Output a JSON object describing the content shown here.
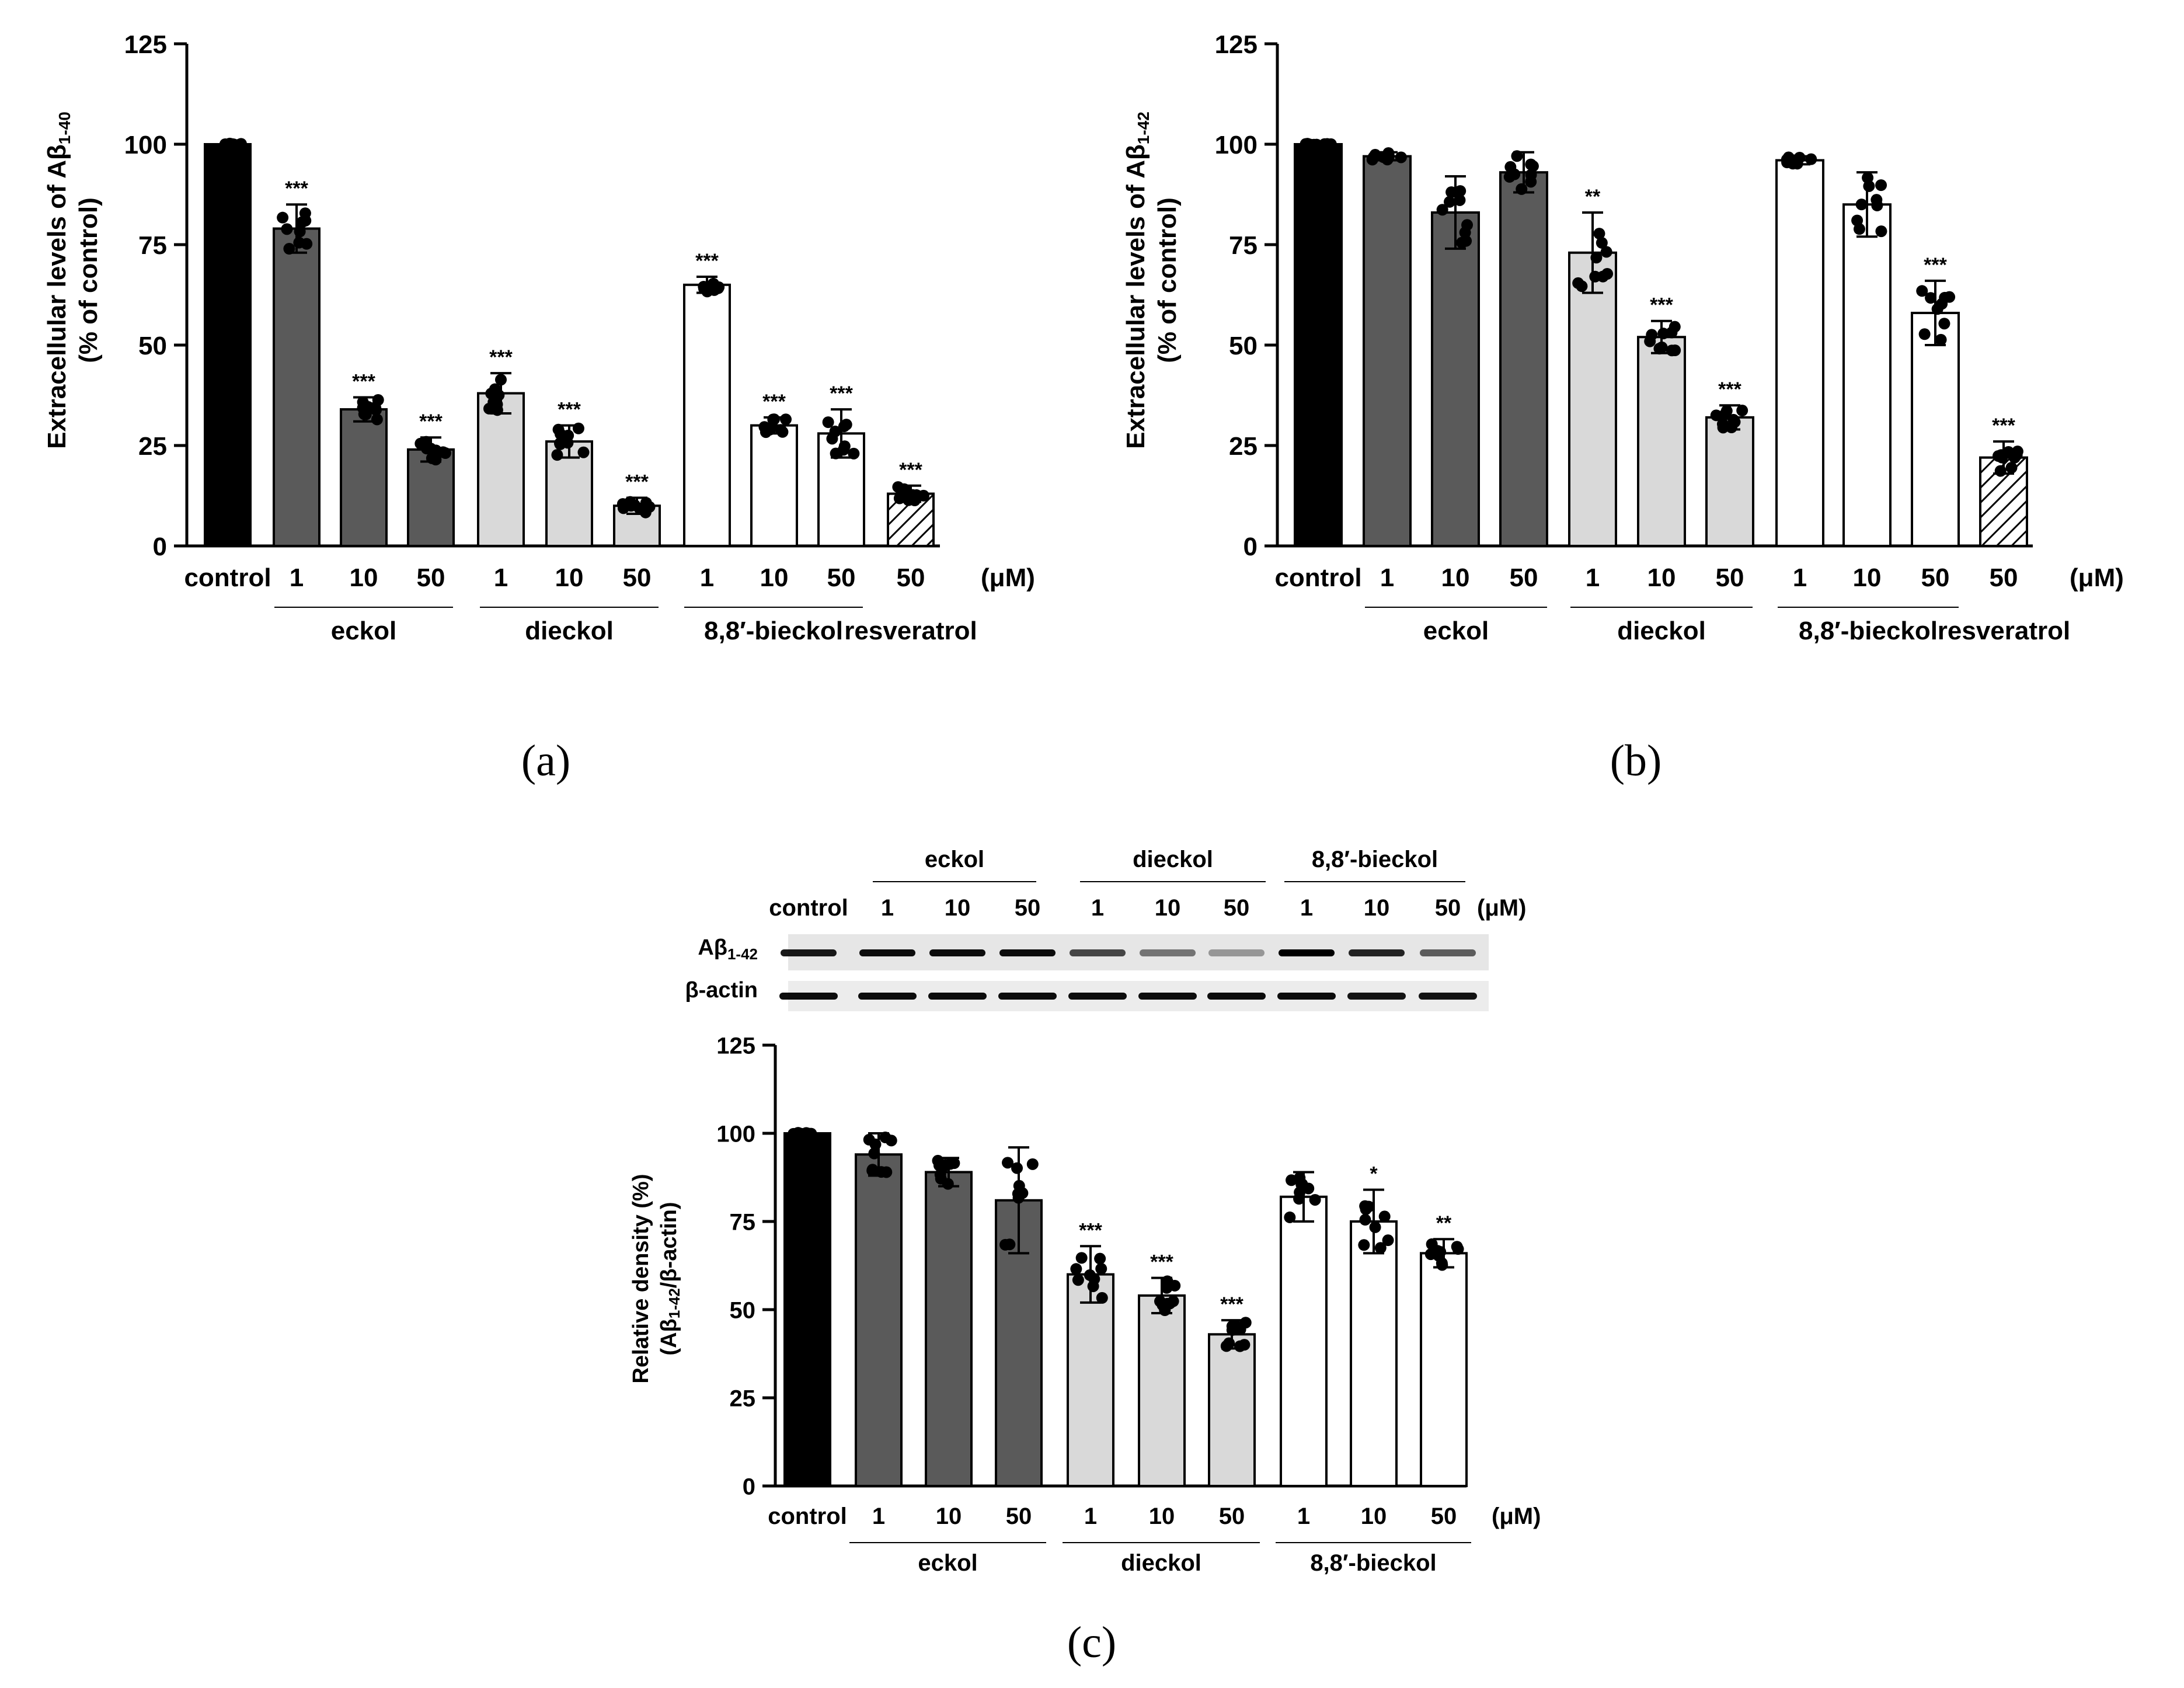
{
  "figure": {
    "panels": [
      {
        "id": "a",
        "label": "(a)"
      },
      {
        "id": "b",
        "label": "(b)"
      },
      {
        "id": "c",
        "label": "(c)"
      }
    ]
  },
  "western_blot": {
    "group_labels": [
      "eckol",
      "dieckol",
      "8,8′-bieckol"
    ],
    "lane_labels": [
      "control",
      "1",
      "10",
      "50",
      "1",
      "10",
      "50",
      "1",
      "10",
      "50"
    ],
    "unit": "(μM)",
    "row_labels": {
      "ab_prefix": "Aβ",
      "ab_sub": "1-42",
      "actin": "β-actin"
    },
    "band_intensity_ab": [
      0.9,
      0.95,
      0.95,
      0.95,
      0.7,
      0.5,
      0.35,
      1.0,
      0.85,
      0.6
    ],
    "band_intensity_actin": [
      0.95,
      0.95,
      0.95,
      0.95,
      0.95,
      0.95,
      0.95,
      0.95,
      0.92,
      0.92
    ]
  },
  "chart_data": [
    {
      "panel": "a",
      "type": "bar",
      "ylabel_prefix": "Extracellular levels of Aβ",
      "ylabel_sub": "1-40",
      "ylabel_line2": "(% of control)",
      "ylim": [
        0,
        125
      ],
      "yticks": [
        "0",
        "25",
        "50",
        "75",
        "100",
        "125"
      ],
      "unit": "(μM)",
      "categories": [
        "control",
        "1",
        "10",
        "50",
        "1",
        "10",
        "50",
        "1",
        "10",
        "50",
        "50"
      ],
      "groups": [
        "control",
        "eckol",
        "eckol",
        "eckol",
        "dieckol",
        "dieckol",
        "dieckol",
        "8,8′-bieckol",
        "8,8′-bieckol",
        "8,8′-bieckol",
        "resveratrol"
      ],
      "group_labels": [
        "eckol",
        "dieckol",
        "8,8′-bieckol",
        "resveratrol"
      ],
      "values": [
        100,
        79,
        34,
        24,
        38,
        26,
        10,
        65,
        30,
        28,
        13
      ],
      "error": [
        0,
        6,
        3,
        3,
        5,
        4,
        2,
        2,
        2,
        6,
        2
      ],
      "significance": [
        "",
        "***",
        "***",
        "***",
        "***",
        "***",
        "***",
        "***",
        "***",
        "***",
        "***"
      ],
      "fill_colors": [
        "#000000",
        "#5a5a5a",
        "#5a5a5a",
        "#5a5a5a",
        "#d9d9d9",
        "#d9d9d9",
        "#d9d9d9",
        "#ffffff",
        "#ffffff",
        "#ffffff",
        "hatch"
      ]
    },
    {
      "panel": "b",
      "type": "bar",
      "ylabel_prefix": "Extracellular levels of Aβ",
      "ylabel_sub": "1-42",
      "ylabel_line2": "(% of control)",
      "ylim": [
        0,
        125
      ],
      "yticks": [
        "0",
        "25",
        "50",
        "75",
        "100",
        "125"
      ],
      "unit": "(μM)",
      "categories": [
        "control",
        "1",
        "10",
        "50",
        "1",
        "10",
        "50",
        "1",
        "10",
        "50",
        "50"
      ],
      "groups": [
        "control",
        "eckol",
        "eckol",
        "eckol",
        "dieckol",
        "dieckol",
        "dieckol",
        "8,8′-bieckol",
        "8,8′-bieckol",
        "8,8′-bieckol",
        "resveratrol"
      ],
      "group_labels": [
        "eckol",
        "dieckol",
        "8,8′-bieckol",
        "resveratrol"
      ],
      "values": [
        100,
        97,
        83,
        93,
        73,
        52,
        32,
        96,
        85,
        58,
        22
      ],
      "error": [
        0,
        1,
        9,
        5,
        10,
        4,
        3,
        1,
        8,
        8,
        4
      ],
      "significance": [
        "",
        "",
        "",
        "",
        "**",
        "***",
        "***",
        "",
        "",
        "***",
        "***"
      ],
      "fill_colors": [
        "#000000",
        "#5a5a5a",
        "#5a5a5a",
        "#5a5a5a",
        "#d9d9d9",
        "#d9d9d9",
        "#d9d9d9",
        "#ffffff",
        "#ffffff",
        "#ffffff",
        "hatch"
      ]
    },
    {
      "panel": "c",
      "type": "bar",
      "ylabel_line1": "Relative density (%)",
      "ylabel_prefix": "(Aβ",
      "ylabel_sub": "1-42",
      "ylabel_suffix": "/β-actin)",
      "ylim": [
        0,
        125
      ],
      "yticks": [
        "0",
        "25",
        "50",
        "75",
        "100",
        "125"
      ],
      "unit": "(μM)",
      "categories": [
        "control",
        "1",
        "10",
        "50",
        "1",
        "10",
        "50",
        "1",
        "10",
        "50"
      ],
      "groups": [
        "control",
        "eckol",
        "eckol",
        "eckol",
        "dieckol",
        "dieckol",
        "dieckol",
        "8,8′-bieckol",
        "8,8′-bieckol",
        "8,8′-bieckol"
      ],
      "group_labels": [
        "eckol",
        "dieckol",
        "8,8′-bieckol"
      ],
      "values": [
        100,
        94,
        89,
        81,
        60,
        54,
        43,
        82,
        75,
        66
      ],
      "error": [
        0,
        6,
        4,
        15,
        8,
        5,
        4,
        7,
        9,
        4
      ],
      "significance": [
        "",
        "",
        "",
        "",
        "***",
        "***",
        "***",
        "",
        "*",
        "**"
      ],
      "fill_colors": [
        "#000000",
        "#5a5a5a",
        "#5a5a5a",
        "#5a5a5a",
        "#d9d9d9",
        "#d9d9d9",
        "#d9d9d9",
        "#ffffff",
        "#ffffff",
        "#ffffff"
      ]
    }
  ]
}
